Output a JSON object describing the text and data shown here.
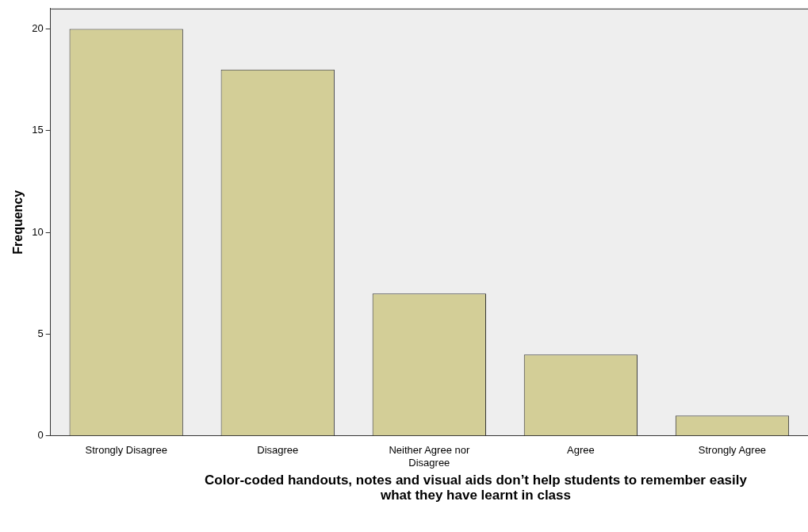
{
  "chart_data": {
    "type": "bar",
    "xlabel": "Color-coded handouts, notes and visual aids don’t help students to remember easily what they have learnt in class",
    "ylabel": "Frequency",
    "categories": [
      "Strongly Disagree",
      "Disagree",
      "Neither Agree nor Disagree",
      "Agree",
      "Strongly Agree"
    ],
    "values": [
      20,
      18,
      7,
      4,
      1
    ],
    "color": "#d3ce97",
    "ylim": [
      0,
      21
    ],
    "yticks": [
      0,
      5,
      10,
      15,
      20
    ],
    "grid": false,
    "legend": false
  }
}
